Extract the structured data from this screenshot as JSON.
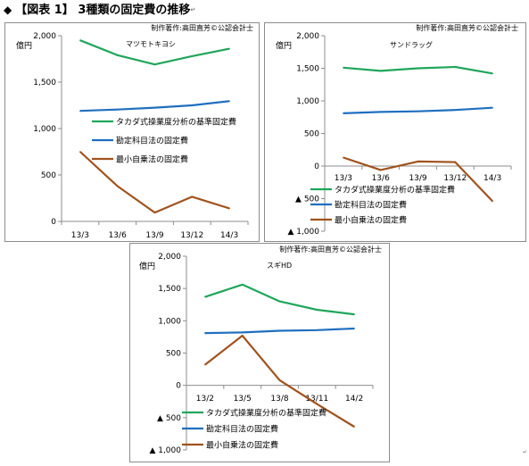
{
  "page": {
    "title_marker": "◆",
    "title": "【図表 1】 3種類の固定費の推移",
    "title_mark": "↵",
    "end_mark": "↵"
  },
  "colors": {
    "takada": "#1fa65a",
    "kanjo": "#1f6fbf",
    "saisho": "#a0521d",
    "border": "#8c8c8c",
    "axis": "#8c8c8c"
  },
  "chart_data": [
    {
      "type": "line",
      "panel": "top-left",
      "credit": "制作著作:高田直芳©公認会計士",
      "title": "マツモトキヨシ",
      "ylabel": "億円",
      "categories": [
        "13/3",
        "13/6",
        "13/9",
        "13/12",
        "14/3"
      ],
      "ylim": [
        0,
        2000
      ],
      "yticks": [
        0,
        500,
        1000,
        1500,
        2000
      ],
      "ytick_labels": [
        "0",
        "500",
        "1,000",
        "1,500",
        "2,000"
      ],
      "grid": false,
      "legend_position": "center-right",
      "series": [
        {
          "name": "タカダ式操業度分析の基準固定費",
          "color": "#1fa65a",
          "values": [
            1950,
            1790,
            1690,
            1780,
            1860
          ]
        },
        {
          "name": "勘定科目法の固定費",
          "color": "#1f6fbf",
          "values": [
            1190,
            1205,
            1225,
            1250,
            1295
          ]
        },
        {
          "name": "最小自乗法の固定費",
          "color": "#a0521d",
          "values": [
            750,
            380,
            95,
            265,
            140
          ]
        }
      ]
    },
    {
      "type": "line",
      "panel": "top-right",
      "credit": "制作著作:高田直芳©公認会計士",
      "title": "サンドラッグ",
      "ylabel": "億円",
      "categories": [
        "13/3",
        "13/6",
        "13/9",
        "13/12",
        "14/3"
      ],
      "ylim": [
        -1000,
        2000
      ],
      "yticks": [
        -1000,
        -500,
        0,
        500,
        1000,
        1500,
        2000
      ],
      "ytick_labels": [
        "▲ 1,000",
        "▲ 500",
        "0",
        "500",
        "1,000",
        "1,500",
        "2,000"
      ],
      "grid": false,
      "legend_position": "bottom-center",
      "series": [
        {
          "name": "タカダ式操業度分析の基準固定費",
          "color": "#1fa65a",
          "values": [
            1510,
            1460,
            1500,
            1520,
            1420
          ]
        },
        {
          "name": "勘定科目法の固定費",
          "color": "#1f6fbf",
          "values": [
            810,
            830,
            840,
            860,
            895
          ]
        },
        {
          "name": "最小自乗法の固定費",
          "color": "#a0521d",
          "values": [
            130,
            -60,
            70,
            60,
            -540
          ]
        }
      ]
    },
    {
      "type": "line",
      "panel": "bottom-center",
      "credit": "制作著作:高田直芳©公認会計士",
      "title": "スギHD",
      "ylabel": "億円",
      "categories": [
        "13/2",
        "13/5",
        "13/8",
        "13/11",
        "14/2"
      ],
      "ylim": [
        -1000,
        2000
      ],
      "yticks": [
        -1000,
        -500,
        0,
        500,
        1000,
        1500,
        2000
      ],
      "ytick_labels": [
        "▲ 1,000",
        "▲ 500",
        "0",
        "500",
        "1,000",
        "1,500",
        "2,000"
      ],
      "grid": false,
      "legend_position": "bottom-center",
      "series": [
        {
          "name": "タカダ式操業度分析の基準固定費",
          "color": "#1fa65a",
          "values": [
            1370,
            1560,
            1300,
            1170,
            1100
          ]
        },
        {
          "name": "勘定科目法の固定費",
          "color": "#1f6fbf",
          "values": [
            810,
            820,
            845,
            855,
            880
          ]
        },
        {
          "name": "最小自乗法の固定費",
          "color": "#a0521d",
          "values": [
            320,
            770,
            80,
            -290,
            -640
          ]
        }
      ]
    }
  ]
}
